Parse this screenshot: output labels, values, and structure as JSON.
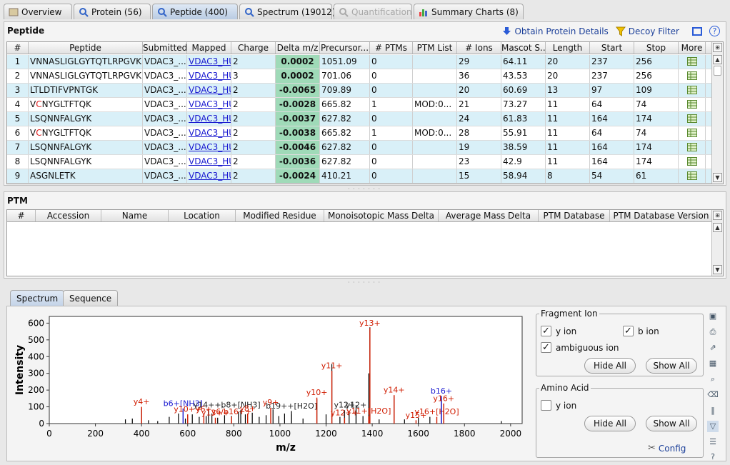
{
  "tabs": [
    {
      "label": "Overview",
      "icon": "overview-icon",
      "state": "normal"
    },
    {
      "label": "Protein (56)",
      "icon": "magnifier-icon",
      "state": "normal"
    },
    {
      "label": "Peptide (400)",
      "icon": "magnifier-icon",
      "state": "active"
    },
    {
      "label": "Spectrum (19012)",
      "icon": "magnifier-icon",
      "state": "normal"
    },
    {
      "label": "Quantification",
      "icon": "magnifier-icon",
      "state": "disabled"
    },
    {
      "label": "Summary Charts (8)",
      "icon": "bar-chart-icon",
      "state": "normal"
    }
  ],
  "peptide_panel": {
    "title": "Peptide",
    "obtain_label": "Obtain Protein Details",
    "decoy_label": "Decoy Filter",
    "columns": [
      "#",
      "Peptide",
      "Submitted",
      "Mapped",
      "Charge",
      "Delta m/z",
      "Precursor...",
      "# PTMs",
      "PTM List",
      "# Ions",
      "Mascot S...",
      "Length",
      "Start",
      "Stop",
      "More"
    ],
    "rows": [
      [
        "1",
        "VNNASLIGLGYTQTLRPGVK",
        "VDAC3_...",
        "VDAC3_HU",
        "2",
        "0.0002",
        "1051.09",
        "0",
        "",
        "29",
        "64.11",
        "20",
        "237",
        "256"
      ],
      [
        "2",
        "VNNASLIGLGYTQTLRPGVK",
        "VDAC3_...",
        "VDAC3_HU",
        "3",
        "0.0002",
        "701.06",
        "0",
        "",
        "36",
        "43.53",
        "20",
        "237",
        "256"
      ],
      [
        "3",
        "LTLDTIFVPNTGK",
        "VDAC3_...",
        "VDAC3_HU",
        "2",
        "-0.0065",
        "709.89",
        "0",
        "",
        "20",
        "60.69",
        "13",
        "97",
        "109"
      ],
      [
        "4",
        "VCNYGLTFTQK",
        "VDAC3_...",
        "VDAC3_HU",
        "2",
        "-0.0028",
        "665.82",
        "1",
        "MOD:0...",
        "21",
        "73.27",
        "11",
        "64",
        "74"
      ],
      [
        "5",
        "LSQNNFALGYK",
        "VDAC3_...",
        "VDAC3_HU",
        "2",
        "-0.0037",
        "627.82",
        "0",
        "",
        "24",
        "61.83",
        "11",
        "164",
        "174"
      ],
      [
        "6",
        "VCNYGLTFTQK",
        "VDAC3_...",
        "VDAC3_HU",
        "2",
        "-0.0038",
        "665.82",
        "1",
        "MOD:0...",
        "28",
        "55.91",
        "11",
        "64",
        "74"
      ],
      [
        "7",
        "LSQNNFALGYK",
        "VDAC3_...",
        "VDAC3_HU",
        "2",
        "-0.0046",
        "627.82",
        "0",
        "",
        "19",
        "38.59",
        "11",
        "164",
        "174"
      ],
      [
        "8",
        "LSQNNFALGYK",
        "VDAC3_...",
        "VDAC3_HU",
        "2",
        "-0.0036",
        "627.82",
        "0",
        "",
        "23",
        "42.9",
        "11",
        "164",
        "174"
      ],
      [
        "9",
        "ASGNLETK",
        "VDAC3_...",
        "VDAC3_HU",
        "2",
        "-0.0024",
        "410.21",
        "0",
        "",
        "15",
        "58.94",
        "8",
        "54",
        "61"
      ]
    ],
    "modified_residue_color": "#e02020"
  },
  "ptm_panel": {
    "title": "PTM",
    "columns": [
      "#",
      "Accession",
      "Name",
      "Location",
      "Modified Residue",
      "Monoisotopic Mass Delta",
      "Average Mass Delta",
      "PTM Database",
      "PTM Database Version"
    ]
  },
  "bottom_tabs": [
    {
      "label": "Spectrum",
      "active": true
    },
    {
      "label": "Sequence",
      "active": false
    }
  ],
  "fragment_ion": {
    "legend": "Fragment Ion",
    "y_label": "y ion",
    "b_label": "b ion",
    "amb_label": "ambiguous ion",
    "y_checked": true,
    "b_checked": true,
    "amb_checked": true,
    "hide_all": "Hide All",
    "show_all": "Show All"
  },
  "amino_acid": {
    "legend": "Amino Acid",
    "y_label": "y ion",
    "y_checked": false,
    "hide_all": "Hide All",
    "show_all": "Show All",
    "config": "Config"
  },
  "chart_data": {
    "type": "bar",
    "xlabel": "m/z",
    "ylabel": "Intensity",
    "xlim": [
      0,
      2050
    ],
    "ylim": [
      0,
      640
    ],
    "xticks": [
      0,
      200,
      400,
      600,
      800,
      1000,
      1200,
      1400,
      1600,
      1800,
      2000
    ],
    "yticks": [
      0,
      100,
      200,
      300,
      400,
      500,
      600
    ],
    "colors": {
      "y": "#d01c00",
      "b": "#1a1ad0",
      "amb": "#222222",
      "peak": "#000000"
    },
    "annotations": [
      {
        "label": "y4+",
        "x": 400,
        "y": 115,
        "kind": "y"
      },
      {
        "label": "b6+[NH3]",
        "x": 580,
        "y": 105,
        "kind": "b"
      },
      {
        "label": "y10++",
        "x": 600,
        "y": 70,
        "kind": "y"
      },
      {
        "label": "y14++,",
        "x": 690,
        "y": 95,
        "kind": "amb"
      },
      {
        "label": "y6+",
        "x": 670,
        "y": 70,
        "kind": "y"
      },
      {
        "label": "y13++",
        "x": 720,
        "y": 50,
        "kind": "y"
      },
      {
        "label": "y6/b16++",
        "x": 790,
        "y": 55,
        "kind": "y"
      },
      {
        "label": "b8+[NH3]",
        "x": 830,
        "y": 95,
        "kind": "amb"
      },
      {
        "label": "y8+",
        "x": 860,
        "y": 75,
        "kind": "y"
      },
      {
        "label": "y9+",
        "x": 960,
        "y": 110,
        "kind": "y"
      },
      {
        "label": "b19++[H2O]",
        "x": 1050,
        "y": 90,
        "kind": "amb"
      },
      {
        "label": "y10+",
        "x": 1160,
        "y": 170,
        "kind": "y"
      },
      {
        "label": "y11+",
        "x": 1225,
        "y": 330,
        "kind": "y"
      },
      {
        "label": "y12+",
        "x": 1280,
        "y": 95,
        "kind": "amb"
      },
      {
        "label": "y12+",
        "x": 1330,
        "y": 95,
        "kind": "amb"
      },
      {
        "label": "y12++",
        "x": 1280,
        "y": 50,
        "kind": "y"
      },
      {
        "label": "y11+[H2O]",
        "x": 1385,
        "y": 60,
        "kind": "y"
      },
      {
        "label": "y13+",
        "x": 1390,
        "y": 585,
        "kind": "y"
      },
      {
        "label": "y14+",
        "x": 1495,
        "y": 185,
        "kind": "y"
      },
      {
        "label": "y15+",
        "x": 1590,
        "y": 35,
        "kind": "y"
      },
      {
        "label": "y16+[H2O]",
        "x": 1680,
        "y": 55,
        "kind": "y"
      },
      {
        "label": "b16+",
        "x": 1700,
        "y": 180,
        "kind": "b"
      },
      {
        "label": "y16+",
        "x": 1710,
        "y": 135,
        "kind": "y"
      }
    ],
    "peaks": [
      {
        "x": 330,
        "y": 25
      },
      {
        "x": 360,
        "y": 30
      },
      {
        "x": 400,
        "y": 90
      },
      {
        "x": 430,
        "y": 20
      },
      {
        "x": 470,
        "y": 15
      },
      {
        "x": 520,
        "y": 40
      },
      {
        "x": 560,
        "y": 60
      },
      {
        "x": 590,
        "y": 30
      },
      {
        "x": 620,
        "y": 55
      },
      {
        "x": 650,
        "y": 40
      },
      {
        "x": 680,
        "y": 45
      },
      {
        "x": 705,
        "y": 60
      },
      {
        "x": 730,
        "y": 35
      },
      {
        "x": 760,
        "y": 50
      },
      {
        "x": 790,
        "y": 45
      },
      {
        "x": 820,
        "y": 70
      },
      {
        "x": 850,
        "y": 55
      },
      {
        "x": 880,
        "y": 65
      },
      {
        "x": 910,
        "y": 40
      },
      {
        "x": 940,
        "y": 50
      },
      {
        "x": 970,
        "y": 85
      },
      {
        "x": 995,
        "y": 45
      },
      {
        "x": 1020,
        "y": 60
      },
      {
        "x": 1050,
        "y": 55
      },
      {
        "x": 1100,
        "y": 30
      },
      {
        "x": 1160,
        "y": 145
      },
      {
        "x": 1200,
        "y": 55
      },
      {
        "x": 1225,
        "y": 355
      },
      {
        "x": 1260,
        "y": 40
      },
      {
        "x": 1300,
        "y": 70
      },
      {
        "x": 1330,
        "y": 110
      },
      {
        "x": 1360,
        "y": 45
      },
      {
        "x": 1385,
        "y": 300
      },
      {
        "x": 1390,
        "y": 575
      },
      {
        "x": 1430,
        "y": 25
      },
      {
        "x": 1495,
        "y": 165
      },
      {
        "x": 1540,
        "y": 25
      },
      {
        "x": 1600,
        "y": 35
      },
      {
        "x": 1650,
        "y": 40
      },
      {
        "x": 1700,
        "y": 150
      },
      {
        "x": 1710,
        "y": 80
      },
      {
        "x": 1960,
        "y": 15
      }
    ]
  }
}
